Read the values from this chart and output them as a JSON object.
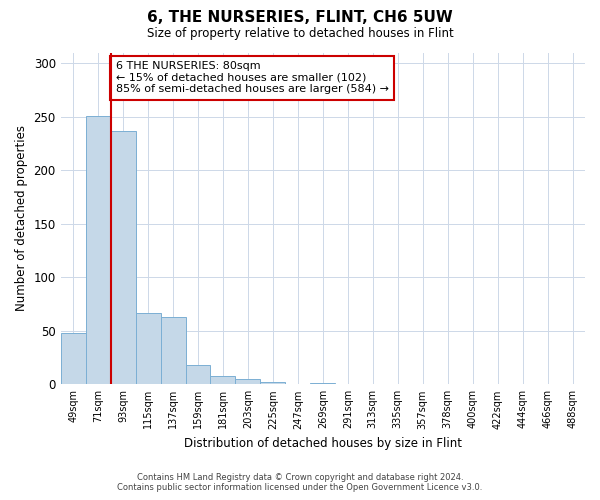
{
  "title": "6, THE NURSERIES, FLINT, CH6 5UW",
  "subtitle": "Size of property relative to detached houses in Flint",
  "xlabel": "Distribution of detached houses by size in Flint",
  "ylabel": "Number of detached properties",
  "bin_labels": [
    "49sqm",
    "71sqm",
    "93sqm",
    "115sqm",
    "137sqm",
    "159sqm",
    "181sqm",
    "203sqm",
    "225sqm",
    "247sqm",
    "269sqm",
    "291sqm",
    "313sqm",
    "335sqm",
    "357sqm",
    "378sqm",
    "400sqm",
    "422sqm",
    "444sqm",
    "466sqm",
    "488sqm"
  ],
  "bar_heights": [
    48,
    251,
    237,
    67,
    63,
    18,
    8,
    5,
    2,
    0,
    1,
    0,
    0,
    0,
    0,
    0,
    0,
    0,
    0,
    0,
    0
  ],
  "bar_color": "#c5d8e8",
  "bar_edge_color": "#7bafd4",
  "vline_x_idx": 1.5,
  "vline_color": "#cc0000",
  "ylim": [
    0,
    310
  ],
  "yticks": [
    0,
    50,
    100,
    150,
    200,
    250,
    300
  ],
  "annotation_title": "6 THE NURSERIES: 80sqm",
  "annotation_line1": "← 15% of detached houses are smaller (102)",
  "annotation_line2": "85% of semi-detached houses are larger (584) →",
  "annotation_box_color": "#cc0000",
  "footer_line1": "Contains HM Land Registry data © Crown copyright and database right 2024.",
  "footer_line2": "Contains public sector information licensed under the Open Government Licence v3.0.",
  "background_color": "#ffffff",
  "grid_color": "#cdd8e8"
}
